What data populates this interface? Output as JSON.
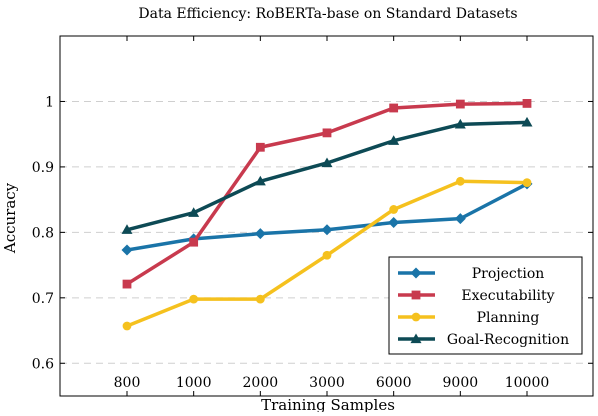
{
  "chart_data": {
    "type": "line",
    "title": "Data Efficiency: RoBERTa-base on Standard Datasets",
    "xlabel": "Training Samples",
    "ylabel": "Accuracy",
    "categories": [
      "800",
      "1000",
      "2000",
      "3000",
      "6000",
      "9000",
      "10000"
    ],
    "ylim": [
      0.55,
      1.1
    ],
    "yticks": [
      0.6,
      0.7,
      0.8,
      0.9,
      1
    ],
    "ytick_labels": [
      "0.6",
      "0.7",
      "0.8",
      "0.9",
      "1"
    ],
    "grid": "horizontal dashed",
    "legend_position": "bottom-right",
    "series": [
      {
        "name": "Projection",
        "color": "#1a74a8",
        "marker": "diamond",
        "values": [
          0.773,
          0.79,
          0.798,
          0.804,
          0.815,
          0.821,
          0.874
        ]
      },
      {
        "name": "Executability",
        "color": "#c83a4e",
        "marker": "square",
        "values": [
          0.721,
          0.785,
          0.93,
          0.952,
          0.99,
          0.996,
          0.997
        ]
      },
      {
        "name": "Planning",
        "color": "#f5c11e",
        "marker": "circle",
        "values": [
          0.657,
          0.698,
          0.698,
          0.765,
          0.835,
          0.878,
          0.876
        ]
      },
      {
        "name": "Goal-Recognition",
        "color": "#0d4a55",
        "marker": "triangle",
        "values": [
          0.804,
          0.83,
          0.878,
          0.906,
          0.94,
          0.965,
          0.968
        ]
      }
    ]
  }
}
